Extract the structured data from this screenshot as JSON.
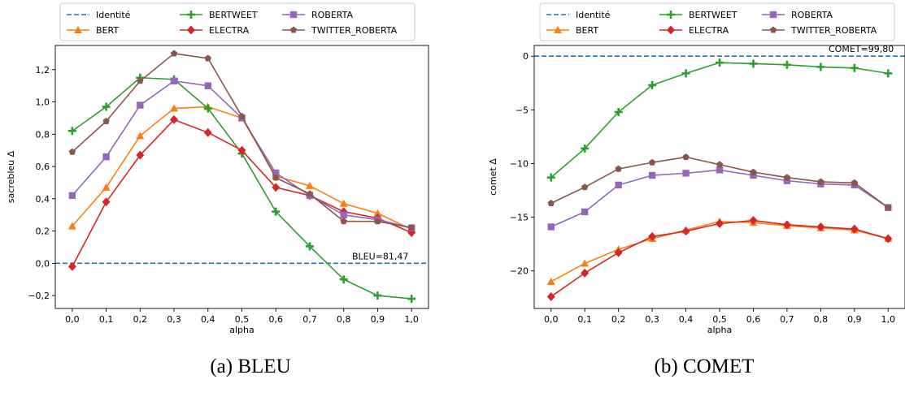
{
  "captions": [
    "(a) BLEU",
    "(b) COMET"
  ],
  "legend_entries": [
    {
      "label": "Identité",
      "color": "#1f77b4",
      "marker": "none",
      "dashed": true
    },
    {
      "label": "BERT",
      "color": "#ff7f0e",
      "marker": "triangle"
    },
    {
      "label": "BERTWEET",
      "color": "#2ca02c",
      "marker": "plus"
    },
    {
      "label": "ELECTRA",
      "color": "#d62728",
      "marker": "diamond"
    },
    {
      "label": "ROBERTA",
      "color": "#9467bd",
      "marker": "square"
    },
    {
      "label": "TWITTER_ROBERTA",
      "color": "#8c564b",
      "marker": "pentagon"
    }
  ],
  "chart_data": [
    {
      "type": "line",
      "title": "",
      "xlabel": "alpha",
      "ylabel": "sacrebleu Δ",
      "x": [
        0.0,
        0.1,
        0.2,
        0.3,
        0.4,
        0.5,
        0.6,
        0.7,
        0.8,
        0.9,
        1.0
      ],
      "x_tick_labels": [
        "0,0",
        "0,1",
        "0,2",
        "0,3",
        "0,4",
        "0,5",
        "0,6",
        "0,7",
        "0,8",
        "0,9",
        "1,0"
      ],
      "xlim": [
        -0.05,
        1.05
      ],
      "ylim": [
        -0.28,
        1.35
      ],
      "y_ticks": [
        -0.2,
        0.0,
        0.2,
        0.4,
        0.6,
        0.8,
        1.0,
        1.2
      ],
      "y_tick_labels": [
        "−0,2",
        "0,0",
        "0,2",
        "0,4",
        "0,6",
        "0,8",
        "1,0",
        "1,2"
      ],
      "grid": false,
      "legend": "top, above axes",
      "reference_line": {
        "name": "Identité",
        "y": 0.0,
        "annotation": "BLEU=81,47"
      },
      "series": [
        {
          "name": "BERT",
          "values": [
            0.23,
            0.47,
            0.79,
            0.96,
            0.97,
            0.9,
            0.54,
            0.48,
            0.37,
            0.31,
            0.21
          ]
        },
        {
          "name": "BERTWEET",
          "values": [
            0.82,
            0.97,
            1.15,
            1.14,
            0.96,
            0.68,
            0.32,
            0.105,
            -0.1,
            -0.2,
            -0.22
          ]
        },
        {
          "name": "ELECTRA",
          "values": [
            -0.02,
            0.38,
            0.67,
            0.89,
            0.81,
            0.7,
            0.47,
            0.42,
            0.32,
            0.28,
            0.19
          ]
        },
        {
          "name": "ROBERTA",
          "values": [
            0.42,
            0.66,
            0.98,
            1.13,
            1.1,
            0.9,
            0.56,
            0.42,
            0.3,
            0.27,
            0.22
          ]
        },
        {
          "name": "TWITTER_ROBERTA",
          "values": [
            0.69,
            0.88,
            1.13,
            1.3,
            1.27,
            0.91,
            0.53,
            0.43,
            0.26,
            0.26,
            0.22
          ]
        }
      ]
    },
    {
      "type": "line",
      "title": "",
      "xlabel": "alpha",
      "ylabel": "comet Δ",
      "x": [
        0.0,
        0.1,
        0.2,
        0.3,
        0.4,
        0.5,
        0.6,
        0.7,
        0.8,
        0.9,
        1.0
      ],
      "x_tick_labels": [
        "0,0",
        "0,1",
        "0,2",
        "0,3",
        "0,4",
        "0,5",
        "0,6",
        "0,7",
        "0,8",
        "0,9",
        "1,0"
      ],
      "xlim": [
        -0.05,
        1.05
      ],
      "ylim": [
        -23.5,
        1.0
      ],
      "y_ticks": [
        -20,
        -15,
        -10,
        -5,
        0
      ],
      "y_tick_labels": [
        "−20",
        "−15",
        "−10",
        "−5",
        "0"
      ],
      "grid": false,
      "legend": "top, above axes",
      "reference_line": {
        "name": "Identité",
        "y": 0.0,
        "annotation": "COMET=99,80"
      },
      "series": [
        {
          "name": "BERT",
          "values": [
            -21.0,
            -19.3,
            -18.0,
            -17.0,
            -16.2,
            -15.4,
            -15.5,
            -15.8,
            -16.0,
            -16.2,
            -17.0
          ]
        },
        {
          "name": "BERTWEET",
          "values": [
            -11.3,
            -8.6,
            -5.2,
            -2.7,
            -1.6,
            -0.6,
            -0.7,
            -0.8,
            -1.0,
            -1.1,
            -1.6
          ]
        },
        {
          "name": "ELECTRA",
          "values": [
            -22.4,
            -20.2,
            -18.3,
            -16.8,
            -16.3,
            -15.6,
            -15.3,
            -15.7,
            -15.9,
            -16.1,
            -17.0
          ]
        },
        {
          "name": "ROBERTA",
          "values": [
            -15.9,
            -14.5,
            -12.0,
            -11.1,
            -10.9,
            -10.6,
            -11.1,
            -11.6,
            -11.9,
            -12.0,
            -14.1
          ]
        },
        {
          "name": "TWITTER_ROBERTA",
          "values": [
            -13.7,
            -12.2,
            -10.5,
            -9.9,
            -9.4,
            -10.1,
            -10.8,
            -11.3,
            -11.7,
            -11.8,
            -14.1
          ]
        }
      ]
    }
  ]
}
